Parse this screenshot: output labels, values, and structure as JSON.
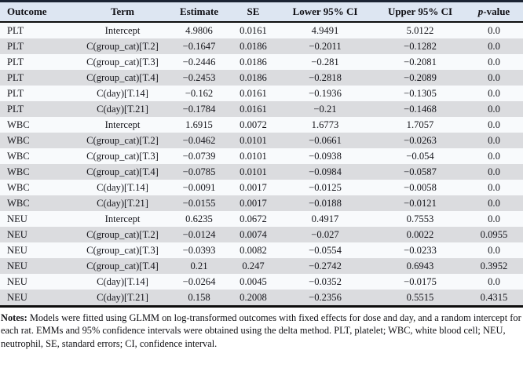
{
  "table": {
    "columns": [
      "Outcome",
      "Term",
      "Estimate",
      "SE",
      "Lower 95% CI",
      "Upper 95% CI"
    ],
    "pvalue_header": {
      "italic_part": "p",
      "rest_part": "-value"
    },
    "column_keys": [
      "outcome",
      "term",
      "estimate",
      "se",
      "lower-95-ci",
      "upper-95-ci",
      "p-value"
    ],
    "rows": [
      [
        "PLT",
        "Intercept",
        "4.9806",
        "0.0161",
        "4.9491",
        "5.0122",
        "0.0"
      ],
      [
        "PLT",
        "C(group_cat)[T.2]",
        "−0.1647",
        "0.0186",
        "−0.2011",
        "−0.1282",
        "0.0"
      ],
      [
        "PLT",
        "C(group_cat)[T.3]",
        "−0.2446",
        "0.0186",
        "−0.281",
        "−0.2081",
        "0.0"
      ],
      [
        "PLT",
        "C(group_cat)[T.4]",
        "−0.2453",
        "0.0186",
        "−0.2818",
        "−0.2089",
        "0.0"
      ],
      [
        "PLT",
        "C(day)[T.14]",
        "−0.162",
        "0.0161",
        "−0.1936",
        "−0.1305",
        "0.0"
      ],
      [
        "PLT",
        "C(day)[T.21]",
        "−0.1784",
        "0.0161",
        "−0.21",
        "−0.1468",
        "0.0"
      ],
      [
        "WBC",
        "Intercept",
        "1.6915",
        "0.0072",
        "1.6773",
        "1.7057",
        "0.0"
      ],
      [
        "WBC",
        "C(group_cat)[T.2]",
        "−0.0462",
        "0.0101",
        "−0.0661",
        "−0.0263",
        "0.0"
      ],
      [
        "WBC",
        "C(group_cat)[T.3]",
        "−0.0739",
        "0.0101",
        "−0.0938",
        "−0.054",
        "0.0"
      ],
      [
        "WBC",
        "C(group_cat)[T.4]",
        "−0.0785",
        "0.0101",
        "−0.0984",
        "−0.0587",
        "0.0"
      ],
      [
        "WBC",
        "C(day)[T.14]",
        "−0.0091",
        "0.0017",
        "−0.0125",
        "−0.0058",
        "0.0"
      ],
      [
        "WBC",
        "C(day)[T.21]",
        "−0.0155",
        "0.0017",
        "−0.0188",
        "−0.0121",
        "0.0"
      ],
      [
        "NEU",
        "Intercept",
        "0.6235",
        "0.0672",
        "0.4917",
        "0.7553",
        "0.0"
      ],
      [
        "NEU",
        "C(group_cat)[T.2]",
        "−0.0124",
        "0.0074",
        "−0.027",
        "0.0022",
        "0.0955"
      ],
      [
        "NEU",
        "C(group_cat)[T.3]",
        "−0.0393",
        "0.0082",
        "−0.0554",
        "−0.0233",
        "0.0"
      ],
      [
        "NEU",
        "C(group_cat)[T.4]",
        "0.21",
        "0.247",
        "−0.2742",
        "0.6943",
        "0.3952"
      ],
      [
        "NEU",
        "C(day)[T.14]",
        "−0.0264",
        "0.0045",
        "−0.0352",
        "−0.0175",
        "0.0"
      ],
      [
        "NEU",
        "C(day)[T.21]",
        "0.158",
        "0.2008",
        "−0.2356",
        "0.5515",
        "0.4315"
      ]
    ]
  },
  "notes": {
    "label": "Notes:",
    "text": "Models were fitted using GLMM on log-transformed outcomes with fixed effects for dose and day, and a random intercept for each rat. EMMs and 95% confidence intervals were obtained using the delta method. PLT, platelet; WBC, white blood cell; NEU, neutrophil, SE, standard errors; CI, confidence interval."
  },
  "colors": {
    "header_bg": "#dde6f2",
    "row_even_bg": "#f8fafc",
    "row_odd_bg": "#dbdcdf",
    "top_border": "#1b2433",
    "rule_black": "#0d0d0d"
  }
}
